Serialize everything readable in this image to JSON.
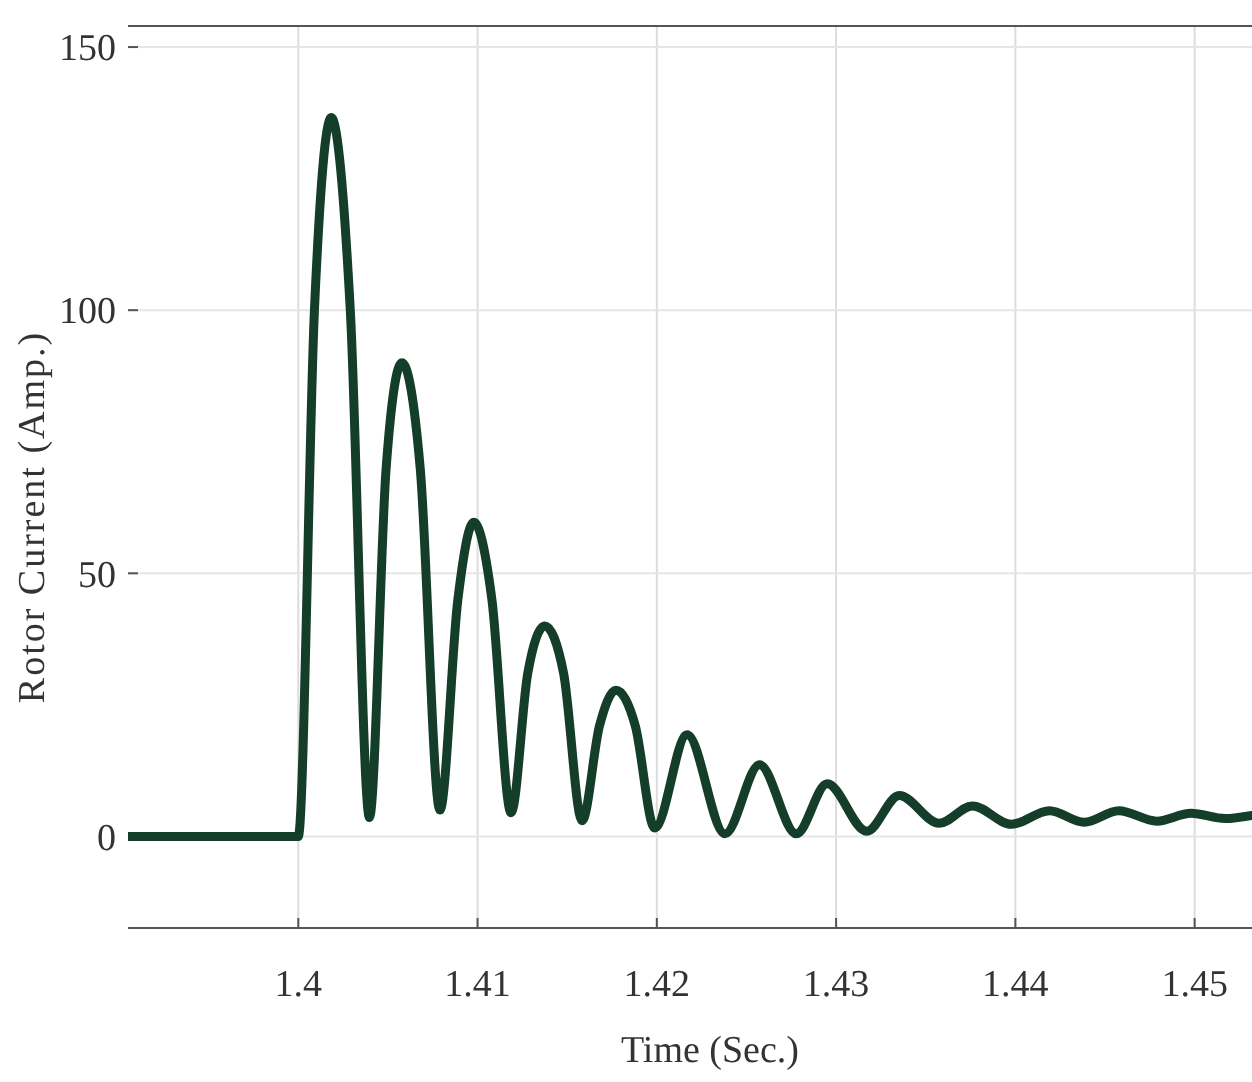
{
  "chart_data": {
    "type": "line",
    "xlabel": "Time (Sec.)",
    "ylabel": "Rotor Current (Amp.)",
    "xlim": [
      1.3905,
      1.4532
    ],
    "ylim": [
      -17.4,
      154
    ],
    "xticks": [
      1.4,
      1.41,
      1.42,
      1.43,
      1.44,
      1.45
    ],
    "yticks": [
      0,
      50,
      100,
      150
    ],
    "grid": true,
    "line_style": "solid",
    "marker": "none",
    "series": [
      {
        "color": "#143d2a",
        "x": [
          1.3905,
          1.4,
          1.4009,
          1.40184,
          1.4029,
          1.40397,
          1.4049,
          1.40578,
          1.4068,
          1.4079,
          1.4089,
          1.40979,
          1.4108,
          1.41187,
          1.4128,
          1.41375,
          1.4148,
          1.41583,
          1.4168,
          1.41772,
          1.4188,
          1.41988,
          1.42169,
          1.4238,
          1.42573,
          1.42778,
          1.4295,
          1.43171,
          1.43352,
          1.43575,
          1.4376,
          1.43978,
          1.4419,
          1.44384,
          1.44577,
          1.44789,
          1.4498,
          1.4517,
          1.4532
        ],
        "values": [
          0,
          0,
          100,
          136.6,
          100,
          3.6,
          70,
          90,
          70,
          5,
          45,
          59.7,
          45,
          4.5,
          31,
          40,
          31,
          3,
          21,
          27.8,
          21,
          1.6,
          19.3,
          0.5,
          13.6,
          0.5,
          10,
          1,
          7.8,
          2.5,
          5.8,
          2.3,
          4.9,
          2.7,
          4.9,
          2.9,
          4.4,
          3.4,
          4
        ]
      }
    ]
  }
}
